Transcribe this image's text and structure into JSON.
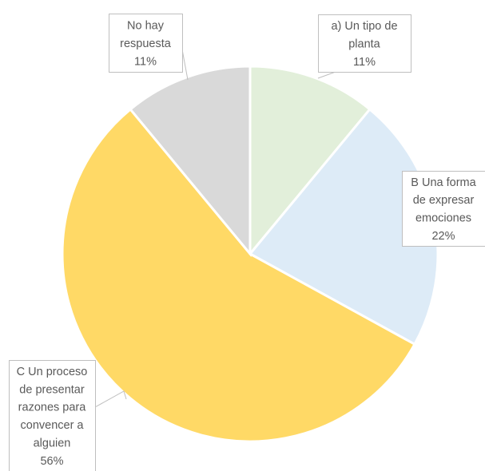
{
  "chart_data": {
    "type": "pie",
    "title": "",
    "categories": [
      "a) Un tipo de planta",
      "B Una forma de expresar emociones",
      "C Un proceso de presentar razones para convencer a alguien",
      "No hay respuesta"
    ],
    "values": [
      11,
      22,
      56,
      11
    ],
    "value_unit": "%",
    "colors": [
      "#E2EFDA",
      "#DDEBF7",
      "#FFD966",
      "#D9D9D9"
    ],
    "data_labels": [
      {
        "lines": [
          "a) Un tipo de",
          "planta",
          "11%"
        ]
      },
      {
        "lines": [
          "B Una forma",
          "de expresar",
          "emociones",
          "22%"
        ]
      },
      {
        "lines": [
          "C Un proceso",
          "de presentar",
          "razones para",
          "convencer a",
          "alguien",
          "56%"
        ]
      },
      {
        "lines": [
          "No hay",
          "respuesta",
          "11%"
        ]
      }
    ],
    "legend": "none"
  }
}
